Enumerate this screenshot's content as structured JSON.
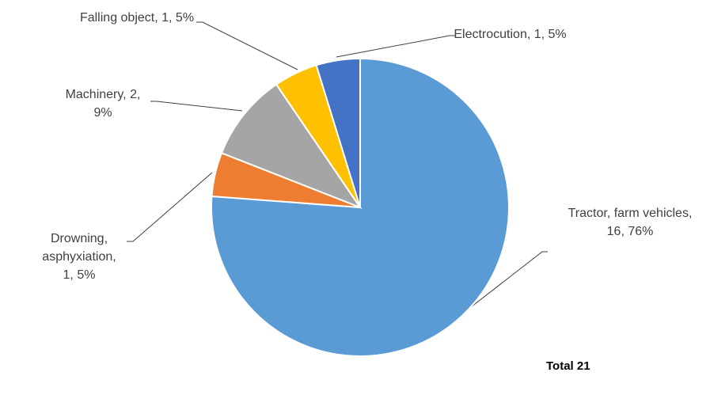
{
  "chart_data": {
    "type": "pie",
    "categories": [
      "Tractor, farm vehicles,",
      "Drowning, asphyxiation,",
      "Machinery,",
      "Falling object,",
      "Electrocution,"
    ],
    "values": [
      16,
      1,
      2,
      1,
      1
    ],
    "value_labels": [
      "16, 76%",
      "1, 5%",
      "2, 9%",
      "1, 5%",
      "1, 5%"
    ],
    "colors": [
      "#5b9bd5",
      "#ed7d31",
      "#a5a5a5",
      "#ffc000",
      "#4472c4"
    ],
    "annotation": "Total 21"
  }
}
